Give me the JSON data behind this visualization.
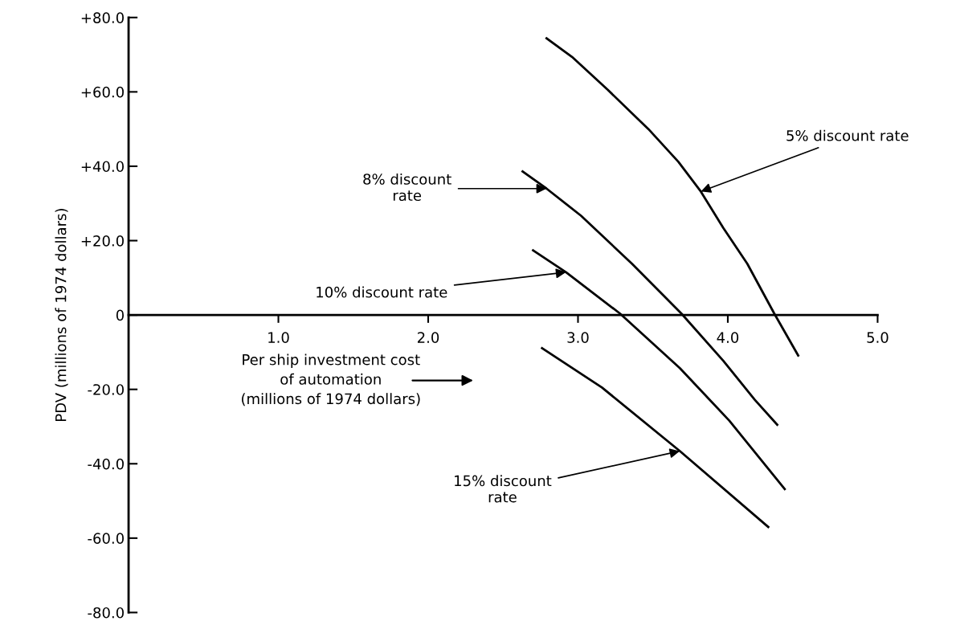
{
  "chart_data": {
    "type": "line",
    "xlabel": "Per ship investment cost\nof automation\n(millions of 1974 dollars)",
    "ylabel": "PDV (millions of 1974 dollars)",
    "xlim": [
      0,
      5
    ],
    "xticks": [
      {
        "value": 1,
        "label": "1.0"
      },
      {
        "value": 2,
        "label": "2.0"
      },
      {
        "value": 3,
        "label": "3.0"
      },
      {
        "value": 4,
        "label": "4.0"
      },
      {
        "value": 5,
        "label": "5.0"
      }
    ],
    "ylim": [
      -80,
      80
    ],
    "yticks": [
      {
        "value": 80,
        "label": "+80.0"
      },
      {
        "value": 60,
        "label": "+60.0"
      },
      {
        "value": 40,
        "label": "+40.0"
      },
      {
        "value": 20,
        "label": "+20.0"
      },
      {
        "value": 0,
        "label": "0"
      },
      {
        "value": -20,
        "label": "-20.0"
      },
      {
        "value": -40,
        "label": "-40.0"
      },
      {
        "value": -60,
        "label": "-60.0"
      },
      {
        "value": -80,
        "label": "-80.0"
      }
    ],
    "grid": false,
    "legend": false,
    "marker": "none",
    "line_style": "solid",
    "series": [
      {
        "color": "#000000",
        "x": [
          2.79,
          2.96,
          3.2,
          3.47,
          3.67,
          3.82,
          3.97,
          4.13,
          4.31,
          4.47
        ],
        "values": [
          74.4,
          69.4,
          60.5,
          50.0,
          41.2,
          33.2,
          23.4,
          13.8,
          0.4,
          -10.9
        ]
      },
      {
        "color": "#000000",
        "x": [
          2.63,
          2.79,
          3.02,
          3.36,
          3.69,
          3.97,
          4.18,
          4.33
        ],
        "values": [
          38.6,
          34.0,
          26.7,
          13.8,
          0.4,
          -12.3,
          -22.8,
          -29.5
        ]
      },
      {
        "color": "#000000",
        "x": [
          2.7,
          2.92,
          3.28,
          3.68,
          4.01,
          4.38
        ],
        "values": [
          17.4,
          11.5,
          0.4,
          -14.3,
          -28.4,
          -46.8
        ]
      },
      {
        "color": "#000000",
        "x": [
          2.76,
          3.16,
          3.68,
          4.27
        ],
        "values": [
          -8.9,
          -19.5,
          -36.6,
          -57.0
        ]
      }
    ],
    "annotations": [
      {
        "text": "5% discount rate",
        "x": 3.82,
        "y": 33.2
      },
      {
        "text": "8% discount\nrate",
        "x": 2.79,
        "y": 34.0
      },
      {
        "text": "10% discount rate",
        "x": 2.92,
        "y": 11.5
      },
      {
        "text": "15% discount\nrate",
        "x": 3.68,
        "y": -36.6
      }
    ]
  }
}
